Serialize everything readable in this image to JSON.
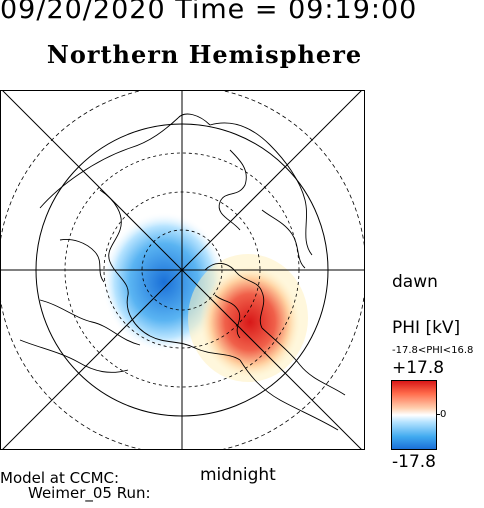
{
  "header": {
    "date_time": "09/20/2020 Time = 09:19:00"
  },
  "map": {
    "title": "Northern Hemisphere",
    "label_dawn": "dawn",
    "label_midnight": "midnight"
  },
  "model": {
    "line1": "Model at CCMC:",
    "line2": "Weimer_05 Run:"
  },
  "colorbar": {
    "title": "PHI [kV]",
    "range_text": "-17.8<PHI<16.8",
    "max_label": "+17.8",
    "zero_label": "0",
    "min_label": "-17.8",
    "colors": {
      "positive": "#d81818",
      "neutral": "#ffffff",
      "negative": "#1a70d8"
    }
  }
}
